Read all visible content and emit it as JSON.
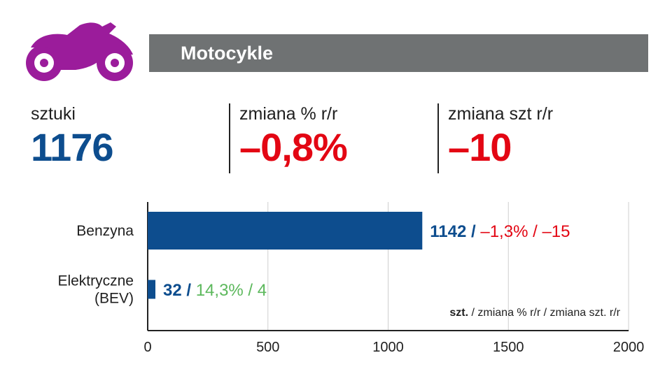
{
  "header": {
    "title": "Motocykle",
    "icon": "motorcycle-icon",
    "icon_color": "#9b1c9b",
    "bar_color": "#6f7273"
  },
  "stats": [
    {
      "label": "sztuki",
      "value": "1176",
      "color": "#0d4d8e"
    },
    {
      "label": "zmiana % r/r",
      "value": "–0,8%",
      "color": "#e30613"
    },
    {
      "label": "zmiana szt r/r",
      "value": "–10",
      "color": "#e30613"
    }
  ],
  "chart_data": {
    "type": "bar",
    "orientation": "horizontal",
    "categories": [
      "Benzyna",
      "Elektryczne (BEV)"
    ],
    "category_lines": [
      [
        "Benzyna"
      ],
      [
        "Elektryczne",
        "(BEV)"
      ]
    ],
    "values": [
      1142,
      32
    ],
    "bar_color": "#0d4d8e",
    "data_labels": [
      {
        "count": "1142",
        "sep1": " / ",
        "pct": "–1,3%",
        "sep2": " / ",
        "change": "–15",
        "change_color": "#e30613"
      },
      {
        "count": "32",
        "sep1": " / ",
        "pct": "14,3%",
        "sep2": " / ",
        "change": "4",
        "change_color": "#5cb85c"
      }
    ],
    "xlim": [
      0,
      2000
    ],
    "x_ticks": [
      0,
      500,
      1000,
      1500,
      2000
    ],
    "x_tick_labels": [
      "0",
      "500",
      "1000",
      "1500",
      "2000"
    ],
    "grid": true,
    "legend_note": {
      "bold": "szt.",
      "rest": " / zmiana % r/r / zmiana szt. r/r"
    }
  }
}
